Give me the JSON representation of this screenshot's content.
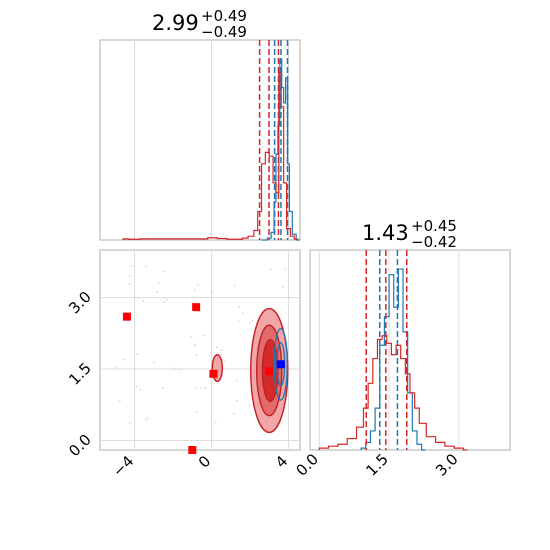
{
  "chart_data": [
    {
      "type": "histogram",
      "panel": "top-left",
      "title": {
        "value": "2.99",
        "plus": "+0.49",
        "minus": "−0.49"
      },
      "xlim": [
        -5.8,
        4.6
      ],
      "grid": true,
      "series": [
        {
          "name": "",
          "color": "#1f77b4",
          "quantiles": [
            3.28,
            3.61,
            3.95
          ],
          "bins": [
            [
              2.6,
              0
            ],
            [
              2.9,
              1
            ],
            [
              3.1,
              4
            ],
            [
              3.25,
              20
            ],
            [
              3.35,
              45
            ],
            [
              3.45,
              60
            ],
            [
              3.55,
              95
            ],
            [
              3.65,
              80
            ],
            [
              3.75,
              72
            ],
            [
              3.85,
              85
            ],
            [
              3.95,
              40
            ],
            [
              4.05,
              15
            ],
            [
              4.2,
              3
            ],
            [
              4.4,
              0
            ]
          ]
        },
        {
          "name": "",
          "color": "#d62728",
          "quantiles": [
            2.5,
            2.99,
            3.48
          ],
          "bins": [
            [
              -4.6,
              0.6
            ],
            [
              -4.3,
              0.4
            ],
            [
              -3.7,
              0.6
            ],
            [
              -0.8,
              0.6
            ],
            [
              -0.2,
              1.2
            ],
            [
              0.3,
              0.8
            ],
            [
              0.8,
              0.4
            ],
            [
              1.6,
              1
            ],
            [
              1.9,
              2
            ],
            [
              2.2,
              5
            ],
            [
              2.4,
              15
            ],
            [
              2.6,
              40
            ],
            [
              2.8,
              46
            ],
            [
              3.0,
              44
            ],
            [
              3.2,
              30
            ],
            [
              3.35,
              25
            ],
            [
              3.5,
              88
            ],
            [
              3.62,
              70
            ],
            [
              3.75,
              30
            ],
            [
              3.9,
              6
            ],
            [
              4.1,
              2
            ],
            [
              4.3,
              0.5
            ]
          ]
        }
      ],
      "ymax": 100
    },
    {
      "type": "histogram",
      "panel": "bottom-right",
      "title": {
        "value": "1.43",
        "plus": "+0.45",
        "minus": "−0.42"
      },
      "xlim": [
        -0.2,
        4.1
      ],
      "ticks": [
        "0.0",
        "1.5",
        "3.0"
      ],
      "grid": true,
      "series": [
        {
          "name": "",
          "color": "#1f77b4",
          "quantiles": [
            1.3,
            1.68,
            1.88
          ],
          "bins": [
            [
              0.9,
              1
            ],
            [
              1.0,
              4
            ],
            [
              1.1,
              10
            ],
            [
              1.2,
              22
            ],
            [
              1.3,
              55
            ],
            [
              1.4,
              70
            ],
            [
              1.5,
              92
            ],
            [
              1.6,
              75
            ],
            [
              1.7,
              95
            ],
            [
              1.8,
              62
            ],
            [
              1.9,
              30
            ],
            [
              2.0,
              10
            ],
            [
              2.1,
              3
            ],
            [
              2.2,
              0
            ]
          ]
        },
        {
          "name": "",
          "color": "#d62728",
          "quantiles": [
            1.01,
            1.43,
            1.88
          ],
          "bins": [
            [
              0.0,
              1
            ],
            [
              0.2,
              2
            ],
            [
              0.4,
              3
            ],
            [
              0.6,
              6
            ],
            [
              0.8,
              12
            ],
            [
              0.95,
              22
            ],
            [
              1.05,
              35
            ],
            [
              1.15,
              48
            ],
            [
              1.25,
              58
            ],
            [
              1.35,
              60
            ],
            [
              1.45,
              56
            ],
            [
              1.55,
              50
            ],
            [
              1.65,
              55
            ],
            [
              1.75,
              48
            ],
            [
              1.85,
              40
            ],
            [
              1.95,
              30
            ],
            [
              2.05,
              22
            ],
            [
              2.15,
              14
            ],
            [
              2.3,
              7
            ],
            [
              2.5,
              4
            ],
            [
              2.7,
              2
            ],
            [
              2.9,
              1
            ],
            [
              3.1,
              0
            ]
          ]
        }
      ],
      "ymax": 100
    },
    {
      "type": "scatter",
      "panel": "bottom-left",
      "xlim": [
        -5.8,
        4.6
      ],
      "ylim": [
        -0.2,
        4.0
      ],
      "xticks": [
        "−4",
        "0",
        "4"
      ],
      "yticks": [
        "0.0",
        "1.5",
        "3.0"
      ],
      "grid": true,
      "marker_points": [
        {
          "x": -4.4,
          "y": 2.6,
          "color": "#ff0000"
        },
        {
          "x": -0.8,
          "y": 2.8,
          "color": "#ff0000"
        },
        {
          "x": 0.1,
          "y": 1.4,
          "color": "#ff0000"
        },
        {
          "x": -1.0,
          "y": -0.2,
          "color": "#ff0000"
        },
        {
          "x": 3.0,
          "y": 1.45,
          "color": "#ff0000"
        },
        {
          "x": 3.6,
          "y": 1.6,
          "color": "#0000ff"
        }
      ],
      "contours": [
        {
          "cx": 3.0,
          "cy": 1.47,
          "rx": 1.55,
          "ry": 1.3,
          "color": "#f2a6a6"
        },
        {
          "cx": 3.0,
          "cy": 1.47,
          "rx": 1.05,
          "ry": 0.95,
          "color": "#e36a6a"
        },
        {
          "cx": 3.05,
          "cy": 1.47,
          "rx": 0.65,
          "ry": 0.65,
          "color": "#d42a2a"
        },
        {
          "cx": 0.3,
          "cy": 1.52,
          "rx": 0.42,
          "ry": 0.28,
          "color": "#f2a6a6"
        }
      ],
      "blue_contours": [
        {
          "cx": 3.6,
          "cy": 1.6,
          "rx": 0.55,
          "ry": 0.75
        },
        {
          "cx": 3.6,
          "cy": 1.6,
          "rx": 0.32,
          "ry": 0.45
        }
      ]
    }
  ]
}
